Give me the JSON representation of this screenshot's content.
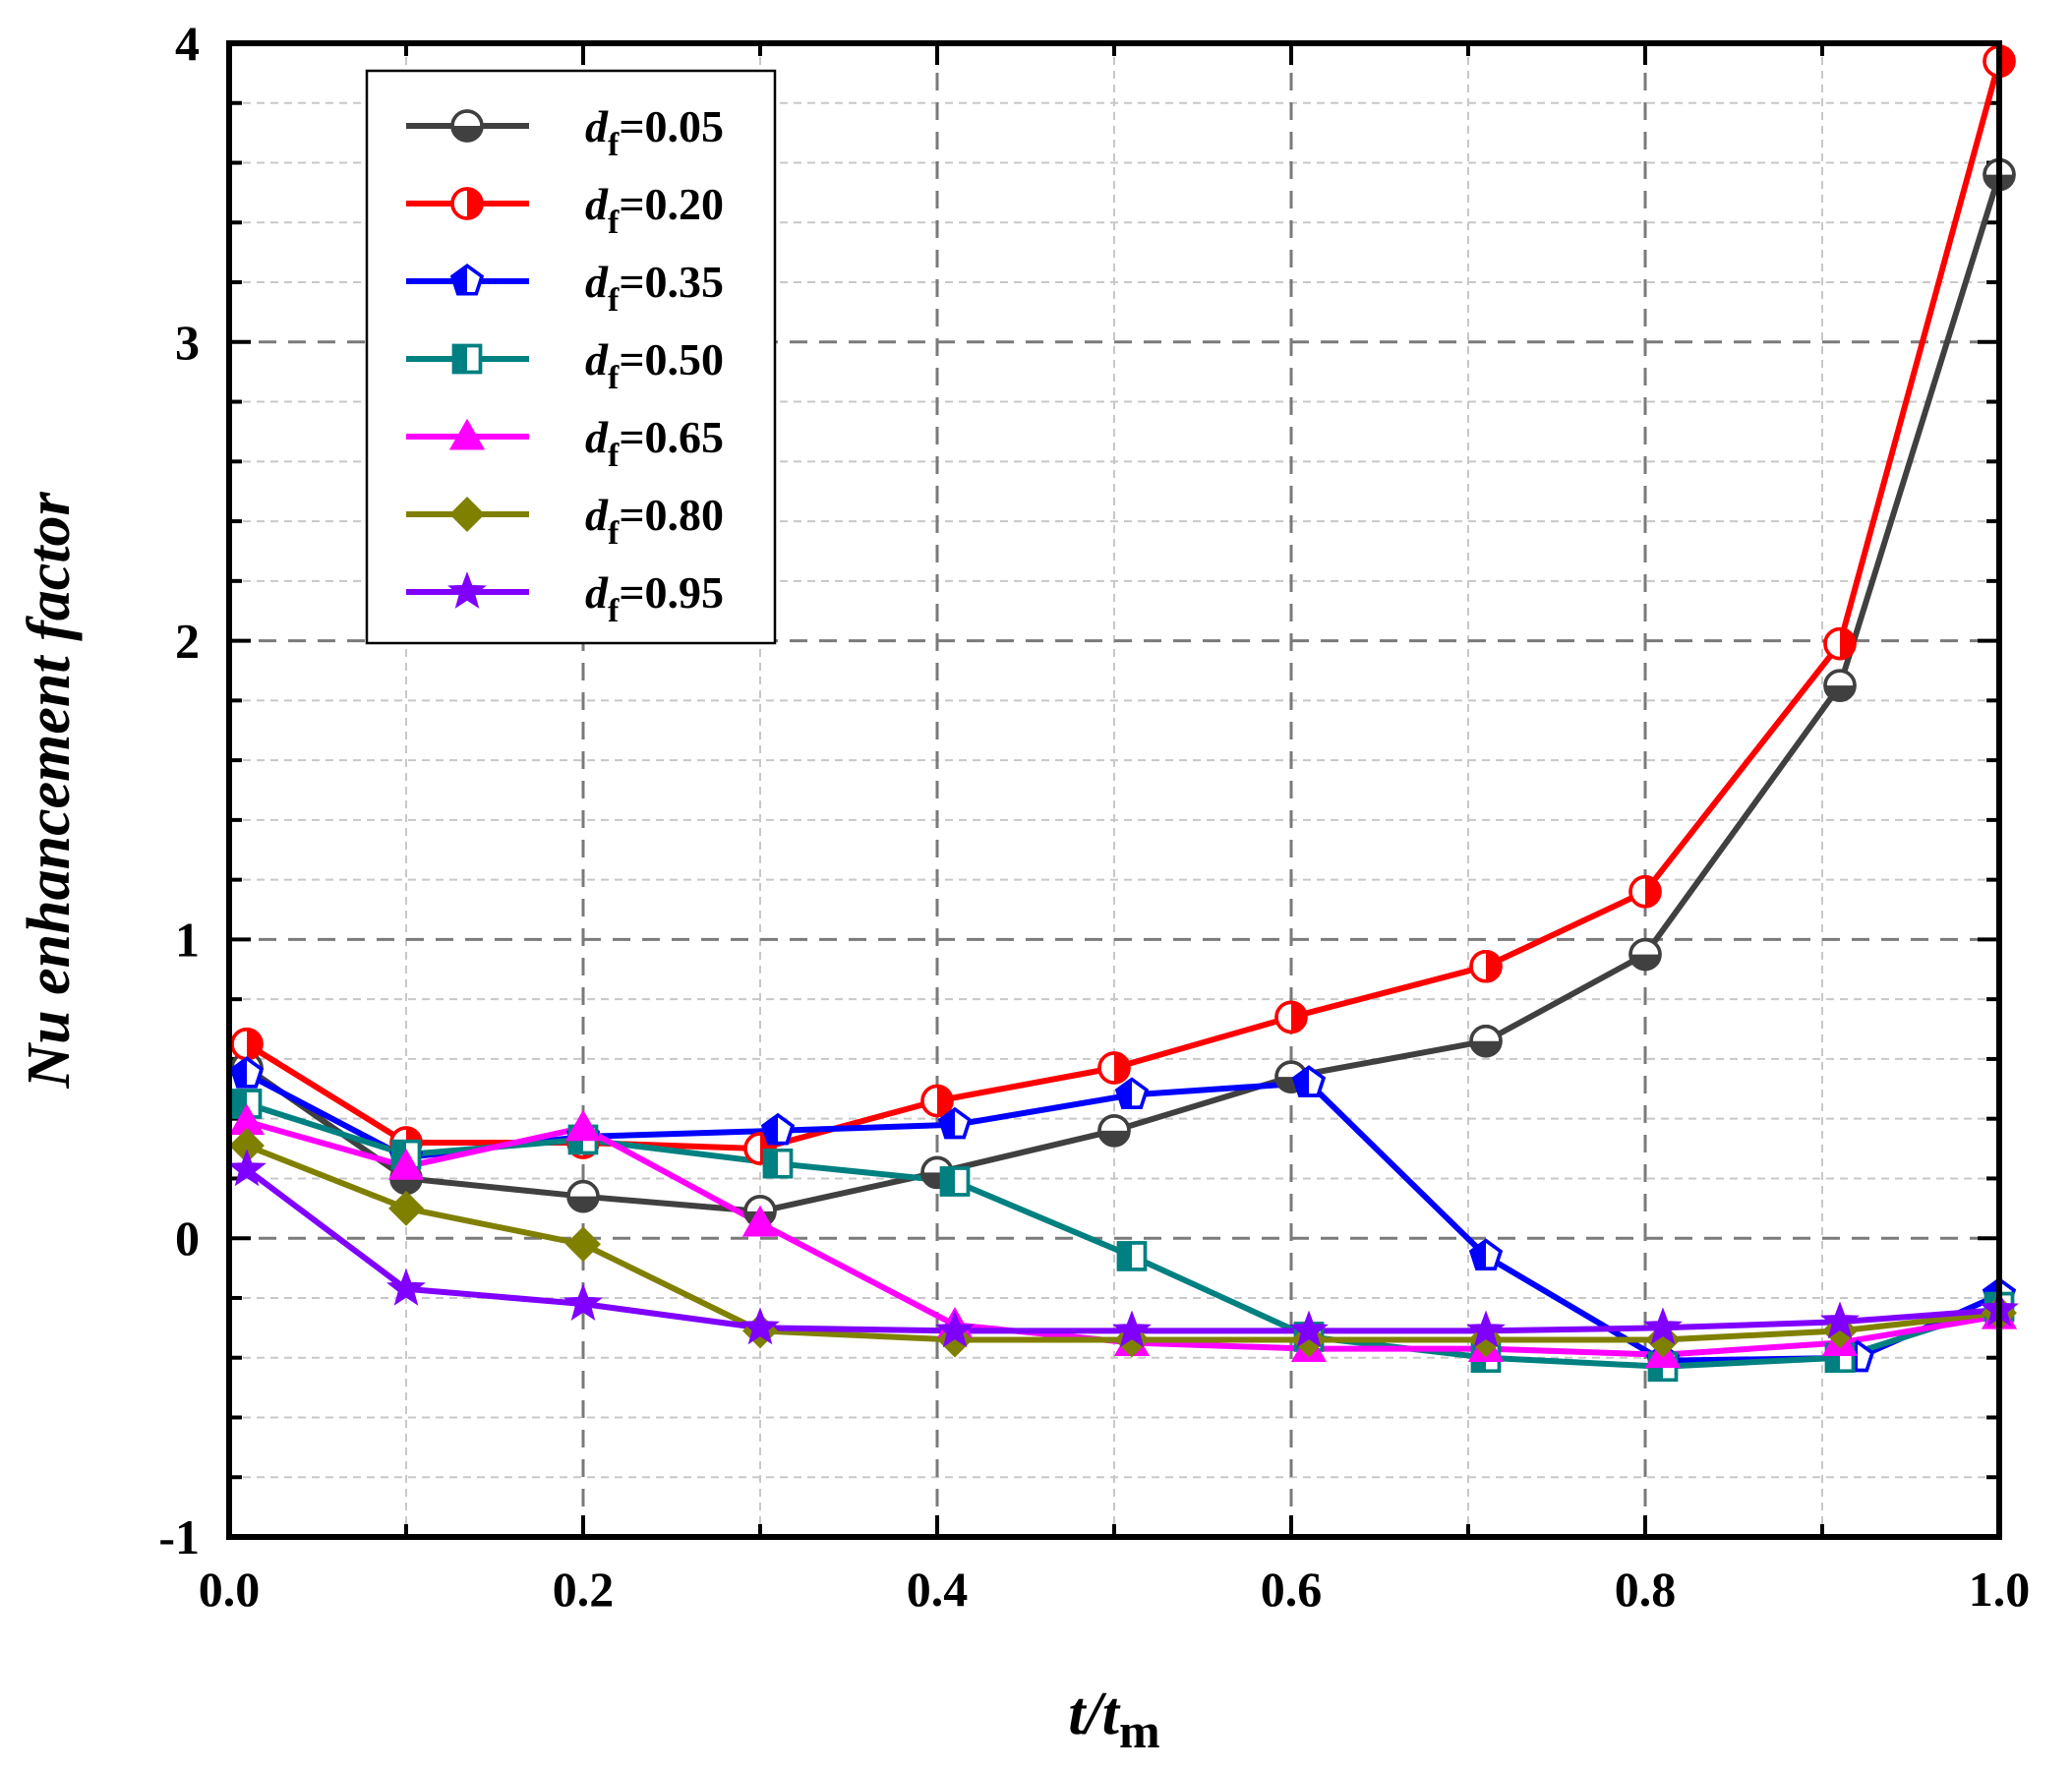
{
  "chart_data": {
    "type": "line",
    "title": "",
    "xlabel": {
      "main": "t/t",
      "sub": "m"
    },
    "ylabel": "Nu enhancement factor",
    "xlim": [
      0.0,
      1.0
    ],
    "ylim": [
      -1,
      4
    ],
    "xticks": [
      "0.0",
      "0.2",
      "0.4",
      "0.6",
      "0.8",
      "1.0"
    ],
    "xtick_values": [
      0.0,
      0.2,
      0.4,
      0.6,
      0.8,
      1.0
    ],
    "yticks": [
      "-1",
      "0",
      "1",
      "2",
      "3",
      "4"
    ],
    "ytick_values": [
      -1,
      0,
      1,
      2,
      3,
      4
    ],
    "grid": true,
    "legend_position": "top-left",
    "legend_prefix": "d",
    "legend_sub": "f",
    "series": [
      {
        "name": "=0.05",
        "color": "#404040",
        "marker": "circle-half-bottom",
        "x": [
          0.01,
          0.1,
          0.2,
          0.3,
          0.4,
          0.5,
          0.6,
          0.71,
          0.8,
          0.91,
          1.0
        ],
        "y": [
          0.57,
          0.2,
          0.14,
          0.09,
          0.22,
          0.36,
          0.54,
          0.66,
          0.95,
          1.85,
          3.56
        ]
      },
      {
        "name": "=0.20",
        "color": "#ff0000",
        "marker": "circle-half-right",
        "x": [
          0.01,
          0.1,
          0.2,
          0.3,
          0.4,
          0.5,
          0.6,
          0.71,
          0.8,
          0.91,
          1.0
        ],
        "y": [
          0.65,
          0.32,
          0.32,
          0.3,
          0.46,
          0.57,
          0.74,
          0.91,
          1.16,
          1.99,
          3.94
        ]
      },
      {
        "name": "=0.35",
        "color": "#0000ff",
        "marker": "pentagon-half-left",
        "x": [
          0.01,
          0.1,
          0.2,
          0.31,
          0.41,
          0.51,
          0.61,
          0.71,
          0.81,
          0.92,
          1.0
        ],
        "y": [
          0.55,
          0.27,
          0.34,
          0.36,
          0.38,
          0.48,
          0.52,
          -0.06,
          -0.41,
          -0.4,
          -0.19
        ]
      },
      {
        "name": "=0.50",
        "color": "#008080",
        "marker": "square-half-right",
        "x": [
          0.01,
          0.1,
          0.2,
          0.31,
          0.41,
          0.51,
          0.61,
          0.71,
          0.81,
          0.91,
          1.0
        ],
        "y": [
          0.45,
          0.28,
          0.33,
          0.25,
          0.19,
          -0.06,
          -0.33,
          -0.4,
          -0.43,
          -0.4,
          -0.23
        ]
      },
      {
        "name": "=0.65",
        "color": "#ff00ff",
        "marker": "triangle",
        "x": [
          0.01,
          0.1,
          0.2,
          0.3,
          0.41,
          0.51,
          0.61,
          0.71,
          0.81,
          0.91,
          1.0
        ],
        "y": [
          0.39,
          0.24,
          0.37,
          0.05,
          -0.29,
          -0.35,
          -0.37,
          -0.37,
          -0.39,
          -0.35,
          -0.26
        ]
      },
      {
        "name": "=0.80",
        "color": "#808000",
        "marker": "diamond",
        "x": [
          0.01,
          0.1,
          0.2,
          0.3,
          0.41,
          0.51,
          0.61,
          0.71,
          0.81,
          0.91,
          1.0
        ],
        "y": [
          0.31,
          0.1,
          -0.02,
          -0.31,
          -0.34,
          -0.34,
          -0.34,
          -0.34,
          -0.34,
          -0.31,
          -0.25
        ]
      },
      {
        "name": "=0.95",
        "color": "#8000ff",
        "marker": "star",
        "x": [
          0.01,
          0.1,
          0.2,
          0.3,
          0.41,
          0.51,
          0.61,
          0.71,
          0.81,
          0.91,
          1.0
        ],
        "y": [
          0.23,
          -0.17,
          -0.22,
          -0.3,
          -0.31,
          -0.31,
          -0.31,
          -0.31,
          -0.3,
          -0.28,
          -0.24
        ]
      }
    ]
  }
}
